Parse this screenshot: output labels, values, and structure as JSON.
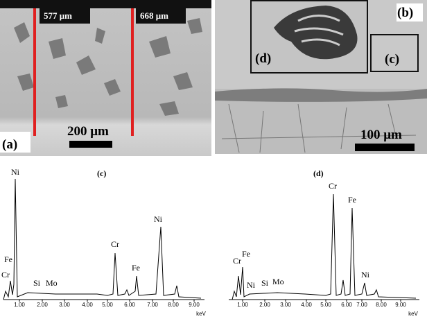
{
  "panels": {
    "a": {
      "label": "(a)",
      "measure_left": "577 μm",
      "measure_right": "668 μm",
      "scale": "200 μm"
    },
    "b": {
      "label": "(b)",
      "inset_d": "(d)",
      "inset_c": "(c)",
      "scale": "100 μm"
    }
  },
  "spectra": [
    {
      "label": "(c)",
      "peaks": [
        "Ni",
        "Fe",
        "Cr",
        "Si",
        "Mo",
        "Cr",
        "Fe",
        "Ni"
      ],
      "ticks": [
        "1.00",
        "2.00",
        "3.00",
        "4.00",
        "5.00",
        "6.00",
        "7.00",
        "8.00",
        "9.00"
      ],
      "unit": "keV"
    },
    {
      "label": "(d)",
      "peaks": [
        "Cr",
        "Fe",
        "Ni",
        "Si",
        "Mo",
        "Cr",
        "Fe",
        "Ni"
      ],
      "ticks": [
        "1.00",
        "2.00",
        "3.00",
        "4.00",
        "5.00",
        "6.00",
        "7.00",
        "8.00",
        "9.00"
      ],
      "unit": "keV"
    }
  ]
}
